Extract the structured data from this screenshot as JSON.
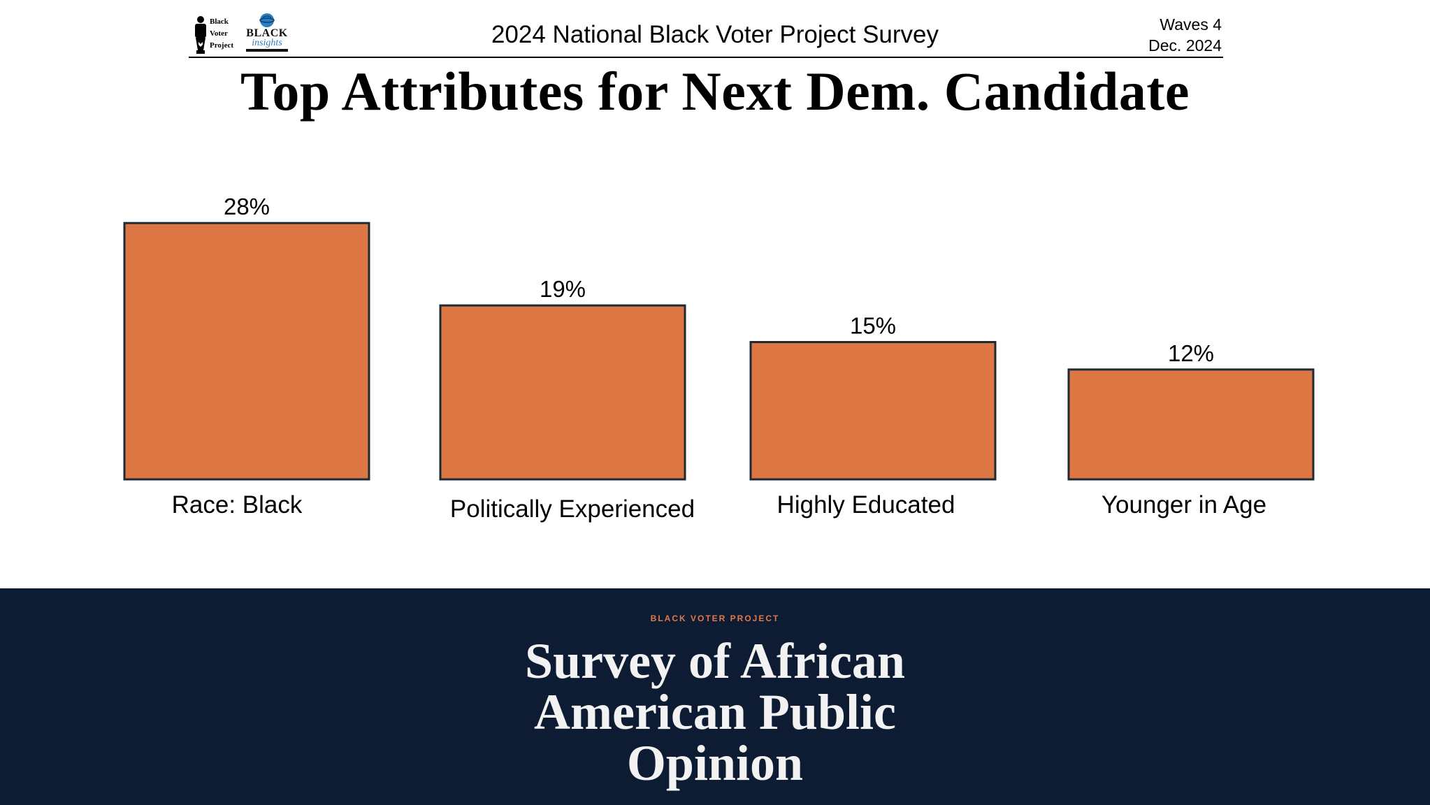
{
  "header": {
    "logo_bvp_lines": [
      "Black",
      "Voter",
      "Project"
    ],
    "logo_bi_line1": "BLACK",
    "logo_bi_line2": "insights",
    "survey_title": "2024 National Black Voter Project Survey",
    "waves": "Waves 4",
    "date": "Dec. 2024"
  },
  "title": "Top Attributes for Next Dem. Candidate",
  "chart_data": {
    "type": "bar",
    "categories": [
      "Race: Black",
      "Politically Experienced",
      "Highly Educated",
      "Younger in Age"
    ],
    "values": [
      28,
      19,
      15,
      12
    ],
    "value_labels": [
      "28%",
      "19%",
      "15%",
      "12%"
    ],
    "unit": "%",
    "bar_color": "#dc7744",
    "bar_edge_color": "#1c2a33",
    "xlabel": "",
    "ylabel": "",
    "grid": false,
    "axes_visible": false
  },
  "footer": {
    "kicker": "BLACK VOTER PROJECT",
    "title_lines": [
      "Survey of African",
      "American Public",
      "Opinion"
    ],
    "background": "#0d1b33",
    "kicker_color": "#e07a4a"
  }
}
